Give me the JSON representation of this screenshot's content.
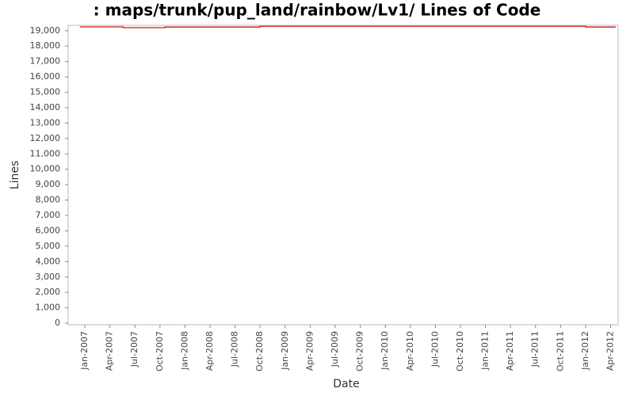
{
  "chart_data": {
    "type": "line",
    "title": ": maps/trunk/pup_land/rainbow/Lv1/ Lines of Code",
    "x_label": "Date",
    "y_label": "Lines",
    "x": [
      -0.6,
      4.6,
      4.6,
      9.6,
      9.6,
      21,
      21,
      60,
      60,
      63.6
    ],
    "series": [
      {
        "name": "Lines",
        "color": "#cc0000",
        "values": [
          19250,
          19250,
          19200,
          19200,
          19240,
          19240,
          19290,
          19290,
          19240,
          19240
        ]
      }
    ],
    "xlim": [
      -2,
      63.9
    ],
    "xticks": [
      {
        "value": 0,
        "label": "Jan-2007"
      },
      {
        "value": 3,
        "label": "Apr-2007"
      },
      {
        "value": 6,
        "label": "Jul-2007"
      },
      {
        "value": 9,
        "label": "Oct-2007"
      },
      {
        "value": 12,
        "label": "Jan-2008"
      },
      {
        "value": 15,
        "label": "Apr-2008"
      },
      {
        "value": 18,
        "label": "Jul-2008"
      },
      {
        "value": 21,
        "label": "Oct-2008"
      },
      {
        "value": 24,
        "label": "Jan-2009"
      },
      {
        "value": 27,
        "label": "Apr-2009"
      },
      {
        "value": 30,
        "label": "Jul-2009"
      },
      {
        "value": 33,
        "label": "Oct-2009"
      },
      {
        "value": 36,
        "label": "Jan-2010"
      },
      {
        "value": 39,
        "label": "Apr-2010"
      },
      {
        "value": 42,
        "label": "Jul-2010"
      },
      {
        "value": 45,
        "label": "Oct-2010"
      },
      {
        "value": 48,
        "label": "Jan-2011"
      },
      {
        "value": 51,
        "label": "Apr-2011"
      },
      {
        "value": 54,
        "label": "Jul-2011"
      },
      {
        "value": 57,
        "label": "Oct-2011"
      },
      {
        "value": 60,
        "label": "Jan-2012"
      },
      {
        "value": 63,
        "label": "Apr-2012"
      }
    ],
    "ylim": [
      -100,
      19350
    ],
    "yticks": [
      0,
      {
        "value": 1000,
        "label": "1,000"
      },
      {
        "value": 2000,
        "label": "2,000"
      },
      {
        "value": 3000,
        "label": "3,000"
      },
      {
        "value": 4000,
        "label": "4,000"
      },
      {
        "value": 5000,
        "label": "5,000"
      },
      {
        "value": 6000,
        "label": "6,000"
      },
      {
        "value": 7000,
        "label": "7,000"
      },
      {
        "value": 8000,
        "label": "8,000"
      },
      {
        "value": 9000,
        "label": "9,000"
      },
      {
        "value": 10000,
        "label": "10,000"
      },
      {
        "value": 11000,
        "label": "11,000"
      },
      {
        "value": 12000,
        "label": "12,000"
      },
      {
        "value": 13000,
        "label": "13,000"
      },
      {
        "value": 14000,
        "label": "14,000"
      },
      {
        "value": 15000,
        "label": "15,000"
      },
      {
        "value": 16000,
        "label": "16,000"
      },
      {
        "value": 17000,
        "label": "17,000"
      },
      {
        "value": 18000,
        "label": "18,000"
      },
      {
        "value": 19000,
        "label": "19,000"
      }
    ],
    "grid": false
  }
}
